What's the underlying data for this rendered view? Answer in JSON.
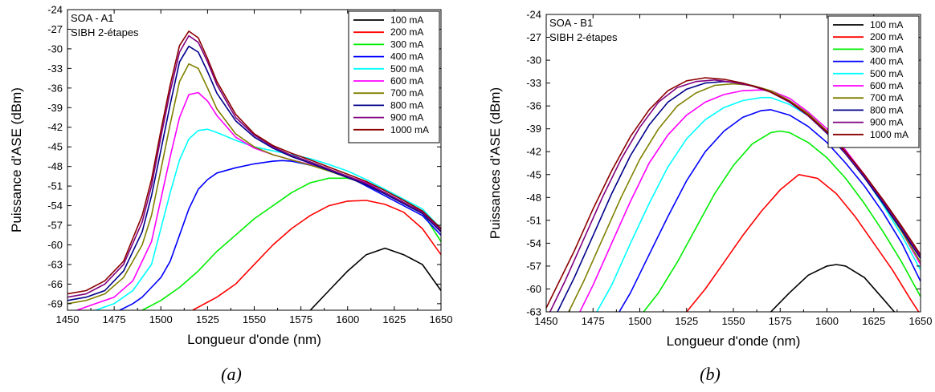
{
  "chart_data": [
    {
      "type": "line",
      "panel": "(a)",
      "annotations": [
        "SOA - A1",
        "SIBH 2-étapes"
      ],
      "xlabel": "Longueur d'onde (nm)",
      "ylabel": "Puissance d'ASE (dBm)",
      "xlim": [
        1450,
        1650
      ],
      "ylim": [
        -70,
        -24
      ],
      "xticks": [
        "1450",
        "1475",
        "1500",
        "1525",
        "1550",
        "1575",
        "1600",
        "1625",
        "1650"
      ],
      "yticks": [
        "-24",
        "-27",
        "-30",
        "-33",
        "-36",
        "-39",
        "-42",
        "-45",
        "-48",
        "-51",
        "-54",
        "-57",
        "-60",
        "-63",
        "-66",
        "-69"
      ],
      "legend_position": "top-right",
      "series": [
        {
          "name": "100 mA",
          "color": "#000000",
          "x": [
            1580,
            1590,
            1600,
            1610,
            1620,
            1630,
            1640,
            1650
          ],
          "y": [
            -70,
            -67,
            -64,
            -61.5,
            -60.5,
            -61.5,
            -63,
            -67
          ]
        },
        {
          "name": "200 mA",
          "color": "#ff0000",
          "x": [
            1517,
            1530,
            1540,
            1550,
            1560,
            1570,
            1580,
            1590,
            1600,
            1610,
            1620,
            1630,
            1640,
            1650
          ],
          "y": [
            -70,
            -68,
            -66,
            -63,
            -60,
            -57.5,
            -55.5,
            -54,
            -53.3,
            -53.2,
            -53.8,
            -55,
            -57.5,
            -61.5
          ]
        },
        {
          "name": "300 mA",
          "color": "#00ee00",
          "x": [
            1490,
            1500,
            1510,
            1520,
            1530,
            1540,
            1550,
            1560,
            1570,
            1580,
            1590,
            1600,
            1610,
            1620,
            1630,
            1640,
            1650
          ],
          "y": [
            -70,
            -68.5,
            -66.5,
            -64,
            -61,
            -58.5,
            -56,
            -54,
            -52,
            -50.5,
            -49.8,
            -49.8,
            -50.5,
            -51.5,
            -53,
            -55,
            -59.5
          ]
        },
        {
          "name": "400 mA",
          "color": "#0000ff",
          "x": [
            1478,
            1485,
            1490,
            1495,
            1500,
            1505,
            1510,
            1515,
            1520,
            1525,
            1530,
            1540,
            1550,
            1560,
            1565,
            1570,
            1580,
            1590,
            1600,
            1610,
            1620,
            1630,
            1640,
            1650
          ],
          "y": [
            -70,
            -69,
            -68,
            -66.5,
            -65,
            -62.5,
            -58.5,
            -54.5,
            -51.5,
            -50,
            -49,
            -48.2,
            -47.6,
            -47.2,
            -47.1,
            -47.2,
            -47.8,
            -48.5,
            -49.5,
            -51,
            -52.5,
            -54,
            -55.5,
            -58.5
          ]
        },
        {
          "name": "500 mA",
          "color": "#00ffff",
          "x": [
            1465,
            1475,
            1485,
            1495,
            1500,
            1505,
            1510,
            1515,
            1520,
            1525,
            1530,
            1540,
            1550,
            1560,
            1570,
            1580,
            1590,
            1600,
            1610,
            1620,
            1630,
            1640,
            1650
          ],
          "y": [
            -70,
            -69,
            -67,
            -63,
            -57.5,
            -52,
            -47,
            -43.8,
            -42.5,
            -42.3,
            -42.8,
            -44,
            -45,
            -45.6,
            -46.2,
            -46.8,
            -47.7,
            -48.7,
            -50,
            -51.5,
            -53,
            -54.5,
            -57.5
          ]
        },
        {
          "name": "600 mA",
          "color": "#ff00ff",
          "x": [
            1455,
            1465,
            1475,
            1485,
            1495,
            1500,
            1505,
            1510,
            1515,
            1520,
            1525,
            1530,
            1540,
            1550,
            1560,
            1570,
            1580,
            1590,
            1600,
            1610,
            1620,
            1630,
            1640,
            1650
          ],
          "y": [
            -70,
            -69,
            -68,
            -65.5,
            -59.5,
            -53,
            -46.5,
            -40.5,
            -37,
            -36.7,
            -38,
            -40.2,
            -43.5,
            -45.2,
            -46.2,
            -47,
            -47.7,
            -48.5,
            -49.5,
            -50.5,
            -52,
            -53.5,
            -55,
            -57.5
          ]
        },
        {
          "name": "700 mA",
          "color": "#808000",
          "x": [
            1450,
            1460,
            1470,
            1480,
            1490,
            1495,
            1500,
            1505,
            1510,
            1515,
            1520,
            1525,
            1530,
            1540,
            1550,
            1560,
            1570,
            1580,
            1590,
            1600,
            1610,
            1620,
            1630,
            1640,
            1650
          ],
          "y": [
            -69,
            -68.5,
            -67.5,
            -65,
            -60,
            -55.5,
            -48.5,
            -41.5,
            -35,
            -32.3,
            -33,
            -36,
            -39.2,
            -43,
            -45,
            -46.2,
            -47,
            -47.8,
            -48.7,
            -49.7,
            -50.8,
            -52.2,
            -53.7,
            -55.2,
            -58
          ]
        },
        {
          "name": "800 mA",
          "color": "#00008b",
          "x": [
            1450,
            1460,
            1470,
            1480,
            1490,
            1495,
            1500,
            1505,
            1510,
            1515,
            1520,
            1525,
            1530,
            1540,
            1550,
            1560,
            1570,
            1580,
            1590,
            1600,
            1610,
            1620,
            1630,
            1640,
            1650
          ],
          "y": [
            -68.5,
            -68,
            -67,
            -64,
            -58,
            -52.5,
            -45.5,
            -38.5,
            -32,
            -29.6,
            -30.5,
            -33.5,
            -36.8,
            -41,
            -43.5,
            -45.2,
            -46.5,
            -47.5,
            -48.6,
            -49.7,
            -50.8,
            -52.2,
            -53.7,
            -55.2,
            -58
          ]
        },
        {
          "name": "900 mA",
          "color": "#800080",
          "x": [
            1450,
            1460,
            1470,
            1480,
            1490,
            1495,
            1500,
            1505,
            1510,
            1515,
            1520,
            1525,
            1530,
            1540,
            1550,
            1560,
            1570,
            1580,
            1590,
            1600,
            1610,
            1620,
            1630,
            1640,
            1650
          ],
          "y": [
            -68,
            -67.5,
            -66,
            -63,
            -56.5,
            -51,
            -43.5,
            -36.5,
            -30.5,
            -28,
            -29,
            -32,
            -35.5,
            -40.5,
            -43.2,
            -45,
            -46.3,
            -47.3,
            -48.4,
            -49.5,
            -50.6,
            -52,
            -53.5,
            -55,
            -57.8
          ]
        },
        {
          "name": "1000 mA",
          "color": "#8b0000",
          "x": [
            1450,
            1460,
            1470,
            1480,
            1490,
            1495,
            1500,
            1505,
            1510,
            1515,
            1520,
            1525,
            1530,
            1540,
            1550,
            1560,
            1570,
            1580,
            1590,
            1600,
            1610,
            1620,
            1630,
            1640,
            1650
          ],
          "y": [
            -67.5,
            -67,
            -65.5,
            -62.5,
            -55.5,
            -50,
            -42.5,
            -35.5,
            -29.5,
            -27.3,
            -28.3,
            -31.5,
            -35,
            -40,
            -43,
            -44.8,
            -46,
            -47,
            -48.1,
            -49.2,
            -50.3,
            -51.7,
            -53.2,
            -54.8,
            -57.5
          ]
        }
      ]
    },
    {
      "type": "line",
      "panel": "(b)",
      "annotations": [
        "SOA - B1",
        "SIBH 2-étapes"
      ],
      "xlabel": "Longueur d'onde (nm)",
      "ylabel": "Puissances d'ASE (dBm)",
      "xlim": [
        1450,
        1650
      ],
      "ylim": [
        -63,
        -24
      ],
      "xticks": [
        "1450",
        "1475",
        "1500",
        "1525",
        "1550",
        "1575",
        "1600",
        "1625",
        "1650"
      ],
      "yticks": [
        "-24",
        "-27",
        "-30",
        "-33",
        "-36",
        "-39",
        "-42",
        "-45",
        "-48",
        "-51",
        "-54",
        "-57",
        "-60",
        "-63"
      ],
      "legend_position": "top-right",
      "series": [
        {
          "name": "100 mA",
          "color": "#000000",
          "x": [
            1570,
            1580,
            1590,
            1600,
            1605,
            1610,
            1620,
            1630,
            1636
          ],
          "y": [
            -63,
            -60.5,
            -58.2,
            -57,
            -56.8,
            -57,
            -58.5,
            -61.3,
            -63
          ]
        },
        {
          "name": "200 mA",
          "color": "#ff0000",
          "x": [
            1525,
            1535,
            1545,
            1555,
            1565,
            1575,
            1585,
            1595,
            1605,
            1615,
            1625,
            1635,
            1645,
            1649
          ],
          "y": [
            -63,
            -60,
            -56.5,
            -53,
            -49.8,
            -47,
            -45,
            -45.5,
            -47.5,
            -50.5,
            -54,
            -57.5,
            -61.5,
            -63
          ]
        },
        {
          "name": "300 mA",
          "color": "#00ee00",
          "x": [
            1502,
            1510,
            1520,
            1530,
            1540,
            1550,
            1560,
            1570,
            1575,
            1580,
            1590,
            1600,
            1610,
            1620,
            1630,
            1640,
            1650
          ],
          "y": [
            -63,
            -60.5,
            -56.5,
            -52,
            -47.5,
            -43.8,
            -41,
            -39.5,
            -39.3,
            -39.5,
            -40.8,
            -42.8,
            -45.5,
            -48.8,
            -52.5,
            -56.5,
            -61
          ]
        },
        {
          "name": "400 mA",
          "color": "#0000ff",
          "x": [
            1489,
            1495,
            1505,
            1515,
            1525,
            1535,
            1545,
            1555,
            1565,
            1570,
            1580,
            1590,
            1600,
            1610,
            1620,
            1630,
            1640,
            1650
          ],
          "y": [
            -63,
            -60.5,
            -55.5,
            -50.5,
            -45.8,
            -42,
            -39.3,
            -37.5,
            -36.6,
            -36.5,
            -37.2,
            -38.7,
            -40.8,
            -43.5,
            -46.5,
            -50,
            -54,
            -59
          ]
        },
        {
          "name": "500 mA",
          "color": "#00ffff",
          "x": [
            1477,
            1485,
            1495,
            1505,
            1515,
            1525,
            1535,
            1545,
            1555,
            1565,
            1570,
            1580,
            1590,
            1600,
            1610,
            1620,
            1630,
            1640,
            1650
          ],
          "y": [
            -63,
            -59.5,
            -54,
            -48.8,
            -44,
            -40.3,
            -37.8,
            -36.2,
            -35.3,
            -34.9,
            -34.9,
            -35.8,
            -37.3,
            -39.5,
            -42.2,
            -45.3,
            -49,
            -53,
            -57.5
          ]
        },
        {
          "name": "600 mA",
          "color": "#ff00ff",
          "x": [
            1468,
            1475,
            1485,
            1495,
            1505,
            1515,
            1525,
            1535,
            1545,
            1555,
            1565,
            1570,
            1580,
            1590,
            1600,
            1610,
            1620,
            1630,
            1640,
            1650
          ],
          "y": [
            -63,
            -59.5,
            -54,
            -48.5,
            -43.5,
            -39.8,
            -37.2,
            -35.5,
            -34.5,
            -34,
            -33.9,
            -34,
            -35,
            -36.8,
            -39,
            -41.8,
            -45,
            -48.6,
            -52.5,
            -56.8
          ]
        },
        {
          "name": "700 mA",
          "color": "#808000",
          "x": [
            1462,
            1470,
            1480,
            1490,
            1500,
            1510,
            1520,
            1530,
            1540,
            1550,
            1560,
            1570,
            1580,
            1590,
            1600,
            1610,
            1620,
            1630,
            1640,
            1650
          ],
          "y": [
            -63,
            -59,
            -53.5,
            -48,
            -43,
            -39,
            -36,
            -34.3,
            -33.3,
            -33.1,
            -33.3,
            -34,
            -35.3,
            -37,
            -39.3,
            -42,
            -45.2,
            -48.8,
            -52.5,
            -56.5
          ]
        },
        {
          "name": "800 mA",
          "color": "#00008b",
          "x": [
            1456,
            1465,
            1475,
            1485,
            1495,
            1505,
            1515,
            1525,
            1535,
            1545,
            1555,
            1565,
            1570,
            1580,
            1590,
            1600,
            1610,
            1620,
            1630,
            1640,
            1650
          ],
          "y": [
            -63,
            -58.5,
            -53,
            -47.5,
            -42.5,
            -38.5,
            -35.5,
            -33.8,
            -33,
            -32.8,
            -33,
            -33.7,
            -34.2,
            -35.5,
            -37.3,
            -39.6,
            -42.3,
            -45.4,
            -48.8,
            -52.3,
            -56
          ]
        },
        {
          "name": "900 mA",
          "color": "#800080",
          "x": [
            1452,
            1460,
            1470,
            1480,
            1490,
            1500,
            1510,
            1520,
            1530,
            1540,
            1550,
            1560,
            1570,
            1580,
            1590,
            1600,
            1610,
            1620,
            1630,
            1640,
            1650
          ],
          "y": [
            -63,
            -59,
            -53.5,
            -48,
            -43,
            -38.8,
            -35.5,
            -33.6,
            -32.8,
            -32.6,
            -32.9,
            -33.4,
            -34.2,
            -35.5,
            -37.3,
            -39.5,
            -42.2,
            -45.2,
            -48.5,
            -52,
            -55.8
          ]
        },
        {
          "name": "1000 mA",
          "color": "#8b0000",
          "x": [
            1450,
            1455,
            1465,
            1475,
            1485,
            1495,
            1505,
            1515,
            1525,
            1535,
            1545,
            1555,
            1565,
            1570,
            1580,
            1590,
            1600,
            1610,
            1620,
            1630,
            1640,
            1650
          ],
          "y": [
            -62.5,
            -60,
            -55,
            -49.5,
            -44.5,
            -40,
            -36.5,
            -34,
            -32.7,
            -32.3,
            -32.5,
            -33,
            -33.7,
            -34.2,
            -35.4,
            -37.2,
            -39.4,
            -42,
            -45,
            -48.3,
            -51.8,
            -55.5
          ]
        }
      ]
    }
  ],
  "captions": [
    "(a)",
    "(b)"
  ]
}
